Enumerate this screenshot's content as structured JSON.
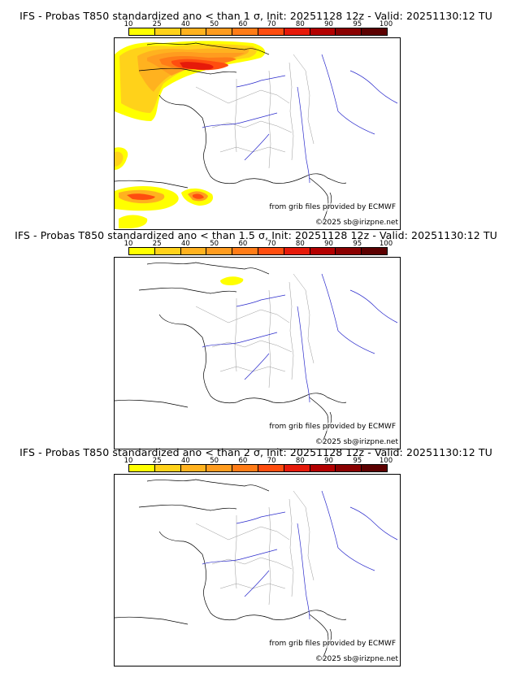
{
  "colorbar": {
    "labels": [
      "10",
      "25",
      "40",
      "50",
      "60",
      "70",
      "80",
      "90",
      "95",
      "100"
    ],
    "colors": [
      "#ffff00",
      "#ffd21a",
      "#ffb21f",
      "#ff9c1f",
      "#ff7c17",
      "#ff4d0f",
      "#e61a0a",
      "#b30000",
      "#8a0000",
      "#5c0000"
    ]
  },
  "panels": [
    {
      "title": "IFS - Probas T850  standardized ano < than 1 σ, Init: 20251128 12z - Valid: 20251130:12 TU",
      "credit": "from grib files provided by ECMWF",
      "copyright": "©2025 sb@irizpne.net"
    },
    {
      "title": "IFS - Probas T850  standardized ano < than 1.5 σ, Init: 20251128 12z - Valid: 20251130:12 TU",
      "credit": "from grib files provided by ECMWF",
      "copyright": "©2025 sb@irizpne.net"
    },
    {
      "title": "IFS - Probas T850  standardized ano < than 2 σ, Init: 20251128 12z - Valid: 20251130:12 TU",
      "credit": "from grib files provided by ECMWF",
      "copyright": "©2025 sb@irizpne.net"
    }
  ]
}
